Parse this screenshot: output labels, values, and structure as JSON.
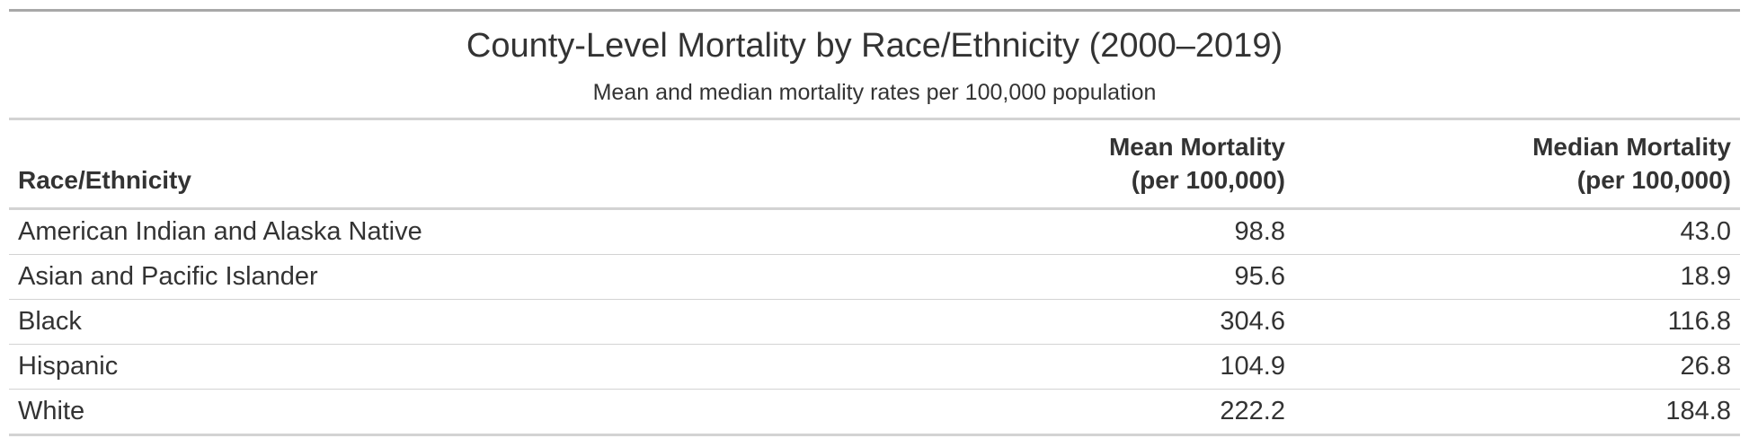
{
  "chart_data": {
    "type": "table",
    "title": "County-Level Mortality by Race/Ethnicity (2000–2019)",
    "subtitle": "Mean and median mortality rates per 100,000 population",
    "columns": [
      {
        "line1": "Race/Ethnicity",
        "line2": ""
      },
      {
        "line1": "Mean Mortality",
        "line2": "(per 100,000)"
      },
      {
        "line1": "Median Mortality",
        "line2": "(per 100,000)"
      }
    ],
    "rows": [
      {
        "group": "American Indian and Alaska Native",
        "mean": "98.8",
        "median": "43.0"
      },
      {
        "group": "Asian and Pacific Islander",
        "mean": "95.6",
        "median": "18.9"
      },
      {
        "group": "Black",
        "mean": "304.6",
        "median": "116.8"
      },
      {
        "group": "Hispanic",
        "mean": "104.9",
        "median": "26.8"
      },
      {
        "group": "White",
        "mean": "222.2",
        "median": "184.8"
      }
    ]
  }
}
